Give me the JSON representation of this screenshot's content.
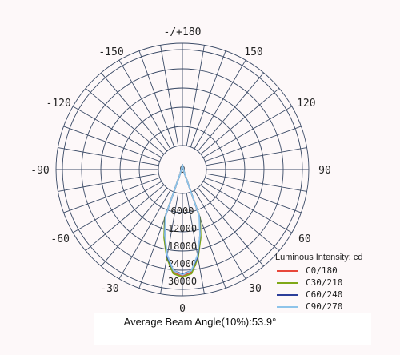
{
  "chart_data": {
    "type": "polar",
    "title": "",
    "angle_unit": "degrees",
    "angle_labels": [
      "-/+180",
      "150",
      "120",
      "90",
      "60",
      "30",
      "0",
      "-30",
      "-60",
      "-90",
      "-120",
      "-150"
    ],
    "radial_ticks": [
      "0",
      "6000",
      "12000",
      "18000",
      "24000",
      "30000"
    ],
    "radial_max": 30000,
    "grid": true,
    "legend_title": "Luminous Intensity: cd",
    "legend_position": "bottom-right",
    "series": [
      {
        "name": "C0/180",
        "color": "#e8473a",
        "angles": [
          -28,
          -20,
          -15,
          -10,
          -5,
          0,
          5,
          10,
          15,
          20,
          28
        ],
        "values": [
          0,
          9000,
          15500,
          22000,
          27000,
          28000,
          27000,
          22000,
          15500,
          9000,
          0
        ]
      },
      {
        "name": "C30/210",
        "color": "#7fa818",
        "angles": [
          -28,
          -20,
          -15,
          -10,
          -5,
          0,
          5,
          10,
          15,
          20,
          28
        ],
        "values": [
          0,
          9500,
          16000,
          22500,
          27500,
          28500,
          27500,
          22500,
          16000,
          9500,
          0
        ]
      },
      {
        "name": "C60/240",
        "color": "#2c3f9a",
        "angles": [
          -28,
          -20,
          -15,
          -10,
          -5,
          0,
          5,
          10,
          15,
          20,
          28
        ],
        "values": [
          0,
          9000,
          15000,
          22000,
          26500,
          27500,
          26500,
          22000,
          15000,
          9000,
          0
        ]
      },
      {
        "name": "C90/270",
        "color": "#8ec4ea",
        "angles": [
          -28,
          -20,
          -15,
          -10,
          -5,
          0,
          5,
          10,
          15,
          20,
          28
        ],
        "values": [
          0,
          8500,
          15000,
          21500,
          26500,
          27800,
          26500,
          21500,
          15000,
          8500,
          0
        ]
      }
    ],
    "annotation": "Average Beam Angle(10%):53.9°"
  }
}
